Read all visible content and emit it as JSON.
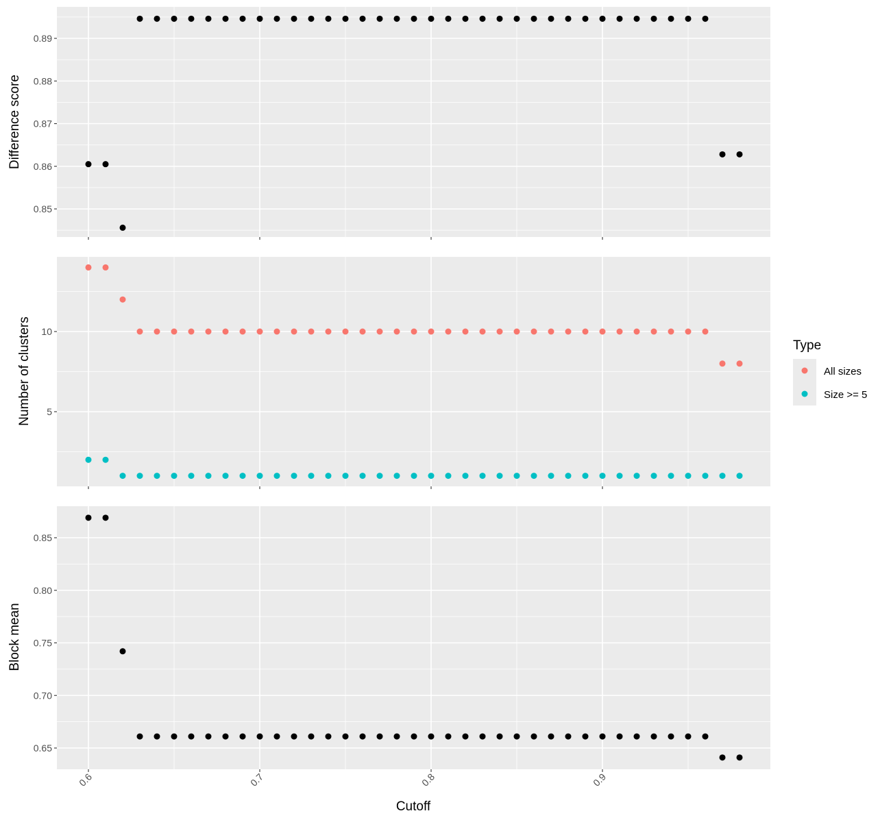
{
  "chart_data": [
    {
      "type": "scatter",
      "panel": "top",
      "title": "",
      "xlabel": "",
      "ylabel": "Difference score",
      "grid": true,
      "y_ticks": [
        0.85,
        0.86,
        0.87,
        0.88,
        0.89
      ],
      "series": [
        {
          "color": "#000000",
          "x": [
            0.6,
            0.61,
            0.62,
            0.63,
            0.64,
            0.65,
            0.66,
            0.67,
            0.68,
            0.69,
            0.7,
            0.71,
            0.72,
            0.73,
            0.74,
            0.75,
            0.76,
            0.77,
            0.78,
            0.79,
            0.8,
            0.81,
            0.82,
            0.83,
            0.84,
            0.85,
            0.86,
            0.87,
            0.88,
            0.89,
            0.9,
            0.91,
            0.92,
            0.93,
            0.94,
            0.95,
            0.96,
            0.97,
            0.98
          ],
          "y": [
            0.8605,
            0.8605,
            0.8456,
            0.8946,
            0.8946,
            0.8946,
            0.8946,
            0.8946,
            0.8946,
            0.8946,
            0.8946,
            0.8946,
            0.8946,
            0.8946,
            0.8946,
            0.8946,
            0.8946,
            0.8946,
            0.8946,
            0.8946,
            0.8946,
            0.8946,
            0.8946,
            0.8946,
            0.8946,
            0.8946,
            0.8946,
            0.8946,
            0.8946,
            0.8946,
            0.8946,
            0.8946,
            0.8946,
            0.8946,
            0.8946,
            0.8946,
            0.8946,
            0.8628,
            0.8628
          ]
        }
      ]
    },
    {
      "type": "scatter",
      "panel": "middle",
      "title": "",
      "xlabel": "",
      "ylabel": "Number of clusters",
      "grid": true,
      "y_ticks": [
        5,
        10
      ],
      "series": [
        {
          "name": "All sizes",
          "color": "#F8766D",
          "x": [
            0.6,
            0.61,
            0.62,
            0.63,
            0.64,
            0.65,
            0.66,
            0.67,
            0.68,
            0.69,
            0.7,
            0.71,
            0.72,
            0.73,
            0.74,
            0.75,
            0.76,
            0.77,
            0.78,
            0.79,
            0.8,
            0.81,
            0.82,
            0.83,
            0.84,
            0.85,
            0.86,
            0.87,
            0.88,
            0.89,
            0.9,
            0.91,
            0.92,
            0.93,
            0.94,
            0.95,
            0.96,
            0.97,
            0.98
          ],
          "y": [
            14,
            14,
            12,
            10,
            10,
            10,
            10,
            10,
            10,
            10,
            10,
            10,
            10,
            10,
            10,
            10,
            10,
            10,
            10,
            10,
            10,
            10,
            10,
            10,
            10,
            10,
            10,
            10,
            10,
            10,
            10,
            10,
            10,
            10,
            10,
            10,
            10,
            8,
            8
          ]
        },
        {
          "name": "Size >= 5",
          "color": "#00BFC4",
          "x": [
            0.6,
            0.61,
            0.62,
            0.63,
            0.64,
            0.65,
            0.66,
            0.67,
            0.68,
            0.69,
            0.7,
            0.71,
            0.72,
            0.73,
            0.74,
            0.75,
            0.76,
            0.77,
            0.78,
            0.79,
            0.8,
            0.81,
            0.82,
            0.83,
            0.84,
            0.85,
            0.86,
            0.87,
            0.88,
            0.89,
            0.9,
            0.91,
            0.92,
            0.93,
            0.94,
            0.95,
            0.96,
            0.97,
            0.98
          ],
          "y": [
            2,
            2,
            1,
            1,
            1,
            1,
            1,
            1,
            1,
            1,
            1,
            1,
            1,
            1,
            1,
            1,
            1,
            1,
            1,
            1,
            1,
            1,
            1,
            1,
            1,
            1,
            1,
            1,
            1,
            1,
            1,
            1,
            1,
            1,
            1,
            1,
            1,
            1,
            1
          ]
        }
      ]
    },
    {
      "type": "scatter",
      "panel": "bottom",
      "title": "",
      "xlabel": "Cutoff",
      "ylabel": "Block mean",
      "grid": true,
      "x_ticks": [
        "0.6",
        "0.7",
        "0.8",
        "0.9"
      ],
      "y_ticks": [
        0.65,
        0.7,
        0.75,
        0.8,
        0.85
      ],
      "series": [
        {
          "color": "#000000",
          "x": [
            0.6,
            0.61,
            0.62,
            0.63,
            0.64,
            0.65,
            0.66,
            0.67,
            0.68,
            0.69,
            0.7,
            0.71,
            0.72,
            0.73,
            0.74,
            0.75,
            0.76,
            0.77,
            0.78,
            0.79,
            0.8,
            0.81,
            0.82,
            0.83,
            0.84,
            0.85,
            0.86,
            0.87,
            0.88,
            0.89,
            0.9,
            0.91,
            0.92,
            0.93,
            0.94,
            0.95,
            0.96,
            0.97,
            0.98
          ],
          "y": [
            0.869,
            0.869,
            0.742,
            0.661,
            0.661,
            0.661,
            0.661,
            0.661,
            0.661,
            0.661,
            0.661,
            0.661,
            0.661,
            0.661,
            0.661,
            0.661,
            0.661,
            0.661,
            0.661,
            0.661,
            0.661,
            0.661,
            0.661,
            0.661,
            0.661,
            0.661,
            0.661,
            0.661,
            0.661,
            0.661,
            0.661,
            0.661,
            0.661,
            0.661,
            0.661,
            0.661,
            0.661,
            0.641,
            0.641
          ]
        }
      ]
    }
  ],
  "legend": {
    "title": "Type",
    "items": [
      {
        "label": "All sizes",
        "color": "#F8766D"
      },
      {
        "label": "Size >= 5",
        "color": "#00BFC4"
      }
    ]
  },
  "theme": {
    "panel_background": "#EBEBEB",
    "grid_color": "#FFFFFF"
  }
}
